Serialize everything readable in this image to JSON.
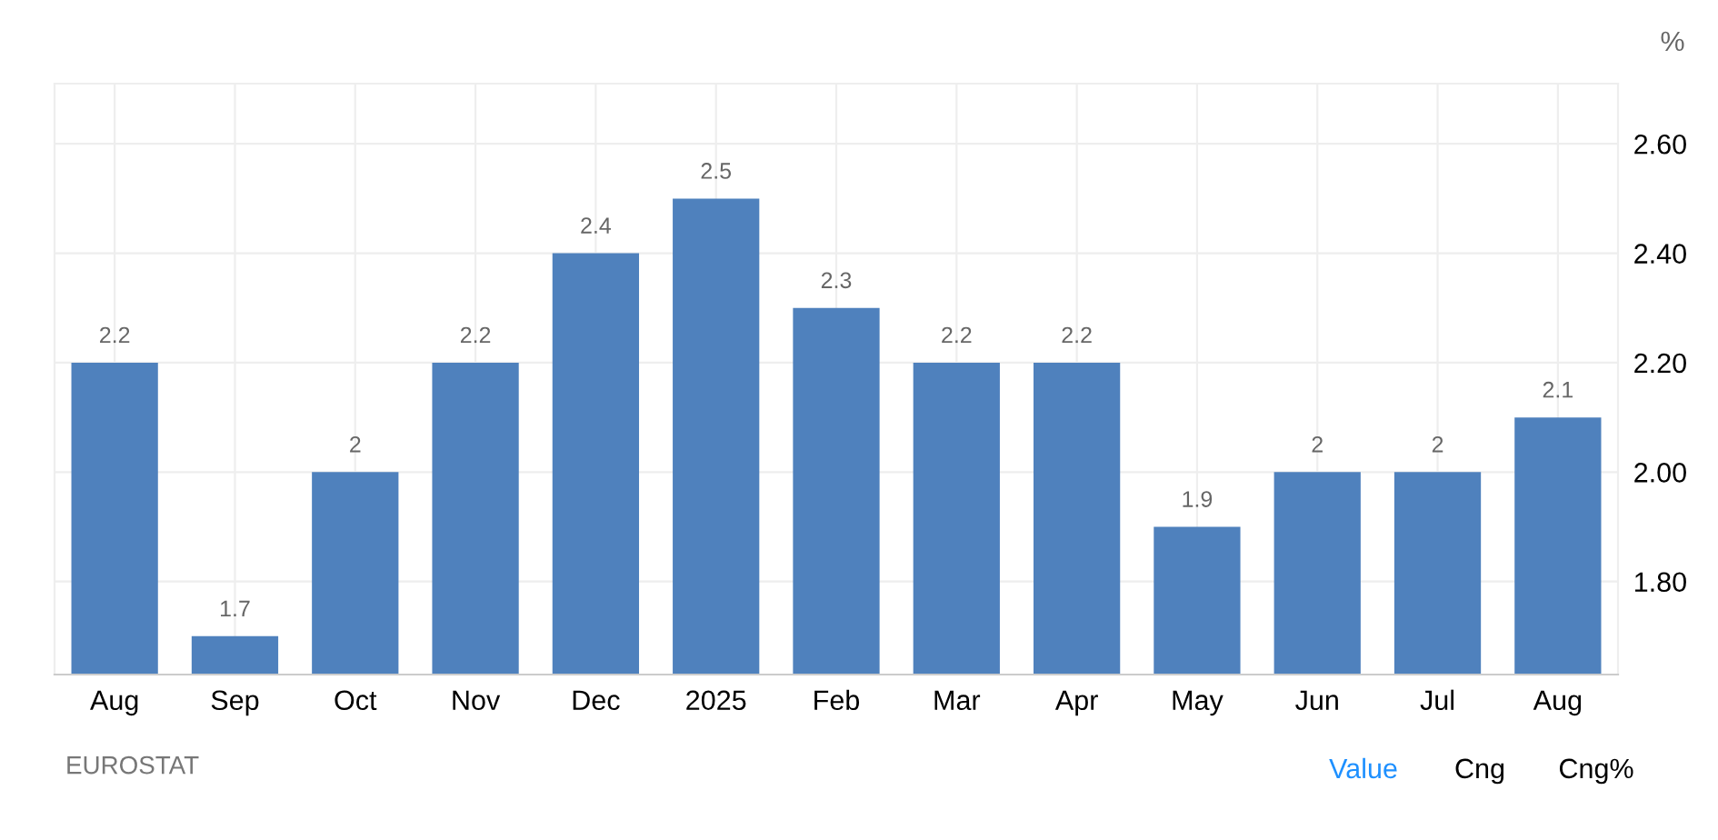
{
  "chart_data": {
    "type": "bar",
    "ylabel": "%",
    "categories": [
      "Aug",
      "Sep",
      "Oct",
      "Nov",
      "Dec",
      "2025",
      "Feb",
      "Mar",
      "Apr",
      "May",
      "Jun",
      "Jul",
      "Aug"
    ],
    "values": [
      2.2,
      1.7,
      2,
      2.2,
      2.4,
      2.5,
      2.3,
      2.2,
      2.2,
      1.9,
      2,
      2,
      2.1
    ],
    "color": "#4f81bd",
    "ylim": [
      1.63,
      2.71
    ],
    "yticks": [
      {
        "value": 1.8,
        "label": "1.80"
      },
      {
        "value": 2.0,
        "label": "2.00"
      },
      {
        "value": 2.2,
        "label": "2.20"
      },
      {
        "value": 2.4,
        "label": "2.40"
      },
      {
        "value": 2.6,
        "label": "2.60"
      }
    ],
    "grid": true,
    "data_labels": true,
    "annotations": [
      "EUROSTAT",
      "Value",
      "Cng",
      "Cng%"
    ]
  }
}
